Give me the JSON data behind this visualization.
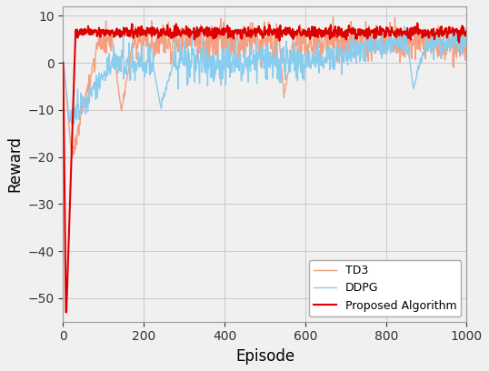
{
  "title": "",
  "xlabel": "Episode",
  "ylabel": "Reward",
  "xlim": [
    0,
    1000
  ],
  "ylim": [
    -55,
    12
  ],
  "yticks": [
    10,
    0,
    -10,
    -20,
    -30,
    -40,
    -50
  ],
  "xticks": [
    0,
    200,
    400,
    600,
    800,
    1000
  ],
  "proposed_color": "#dd0000",
  "td3_color": "#f4a080",
  "ddpg_color": "#88ccee",
  "legend_labels": [
    "Proposed Algorithm",
    "TD3",
    "DDPG"
  ],
  "proposed_linewidth": 1.5,
  "td3_linewidth": 1.0,
  "ddpg_linewidth": 1.0,
  "grid_color": "#cccccc",
  "background_color": "#f0f0f0",
  "n_episodes": 1001,
  "seed": 7
}
